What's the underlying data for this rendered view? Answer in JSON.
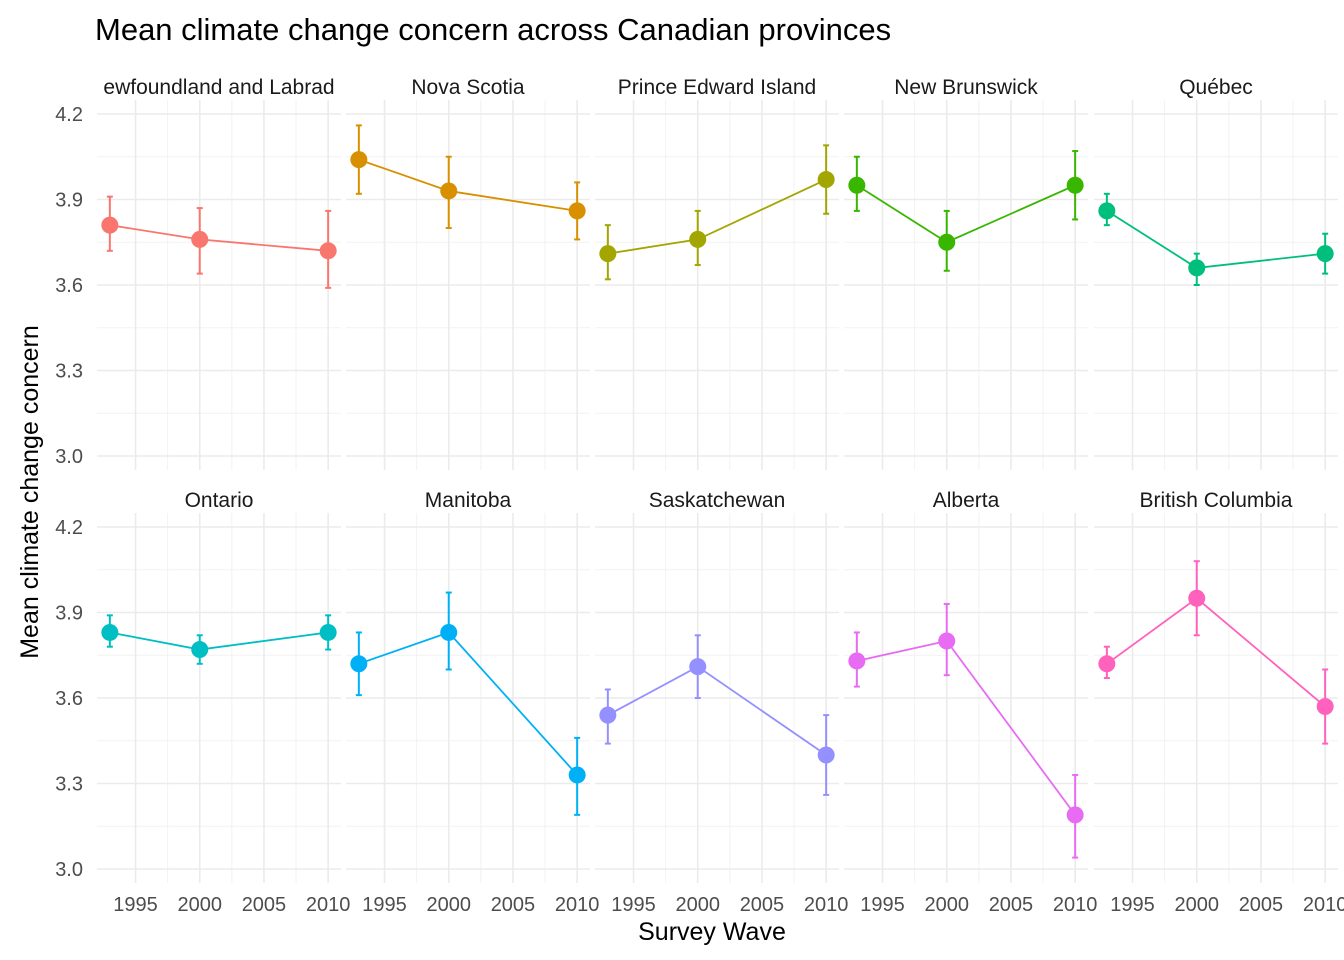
{
  "chart_data": {
    "type": "line",
    "title": "Mean climate change concern across Canadian provinces",
    "xlabel": "Survey Wave",
    "ylabel": "Mean climate change concern",
    "x": [
      1993,
      2000,
      2010
    ],
    "xlim": [
      1992,
      2011
    ],
    "ylim": [
      3.0,
      4.2
    ],
    "yticks": [
      "3.0",
      "3.3",
      "3.6",
      "3.9",
      "4.2"
    ],
    "xticks": [
      "1995",
      "2000",
      "2005",
      "2010"
    ],
    "grid": true,
    "legend": "none",
    "panels": [
      {
        "name": "Newfoundland and Labrador",
        "display": "ewfoundland and Labrad",
        "color": "#F8766D",
        "values": [
          3.81,
          3.76,
          3.72
        ],
        "lower": [
          3.72,
          3.64,
          3.59
        ],
        "upper": [
          3.91,
          3.87,
          3.86
        ]
      },
      {
        "name": "Nova Scotia",
        "display": "Nova Scotia",
        "color": "#D89000",
        "values": [
          4.04,
          3.93,
          3.86
        ],
        "lower": [
          3.92,
          3.8,
          3.76
        ],
        "upper": [
          4.16,
          4.05,
          3.96
        ]
      },
      {
        "name": "Prince Edward Island",
        "display": "Prince Edward Island",
        "color": "#A3A500",
        "values": [
          3.71,
          3.76,
          3.97
        ],
        "lower": [
          3.62,
          3.67,
          3.85
        ],
        "upper": [
          3.81,
          3.86,
          4.09
        ]
      },
      {
        "name": "New Brunswick",
        "display": "New Brunswick",
        "color": "#39B600",
        "values": [
          3.95,
          3.75,
          3.95
        ],
        "lower": [
          3.86,
          3.65,
          3.83
        ],
        "upper": [
          4.05,
          3.86,
          4.07
        ]
      },
      {
        "name": "Québec",
        "display": "Québec",
        "color": "#00BF7D",
        "values": [
          3.86,
          3.66,
          3.71
        ],
        "lower": [
          3.81,
          3.6,
          3.64
        ],
        "upper": [
          3.92,
          3.71,
          3.78
        ]
      },
      {
        "name": "Ontario",
        "display": "Ontario",
        "color": "#00BFC4",
        "values": [
          3.83,
          3.77,
          3.83
        ],
        "lower": [
          3.78,
          3.72,
          3.77
        ],
        "upper": [
          3.89,
          3.82,
          3.89
        ]
      },
      {
        "name": "Manitoba",
        "display": "Manitoba",
        "color": "#00B0F6",
        "values": [
          3.72,
          3.83,
          3.33
        ],
        "lower": [
          3.61,
          3.7,
          3.19
        ],
        "upper": [
          3.83,
          3.97,
          3.46
        ]
      },
      {
        "name": "Saskatchewan",
        "display": "Saskatchewan",
        "color": "#9590FF",
        "values": [
          3.54,
          3.71,
          3.4
        ],
        "lower": [
          3.44,
          3.6,
          3.26
        ],
        "upper": [
          3.63,
          3.82,
          3.54
        ]
      },
      {
        "name": "Alberta",
        "display": "Alberta",
        "color": "#E76BF3",
        "values": [
          3.73,
          3.8,
          3.19
        ],
        "lower": [
          3.64,
          3.68,
          3.04
        ],
        "upper": [
          3.83,
          3.93,
          3.33
        ]
      },
      {
        "name": "British Columbia",
        "display": "British Columbia",
        "color": "#FF62BC",
        "values": [
          3.72,
          3.95,
          3.57
        ],
        "lower": [
          3.67,
          3.82,
          3.44
        ],
        "upper": [
          3.78,
          4.08,
          3.7
        ]
      }
    ]
  }
}
